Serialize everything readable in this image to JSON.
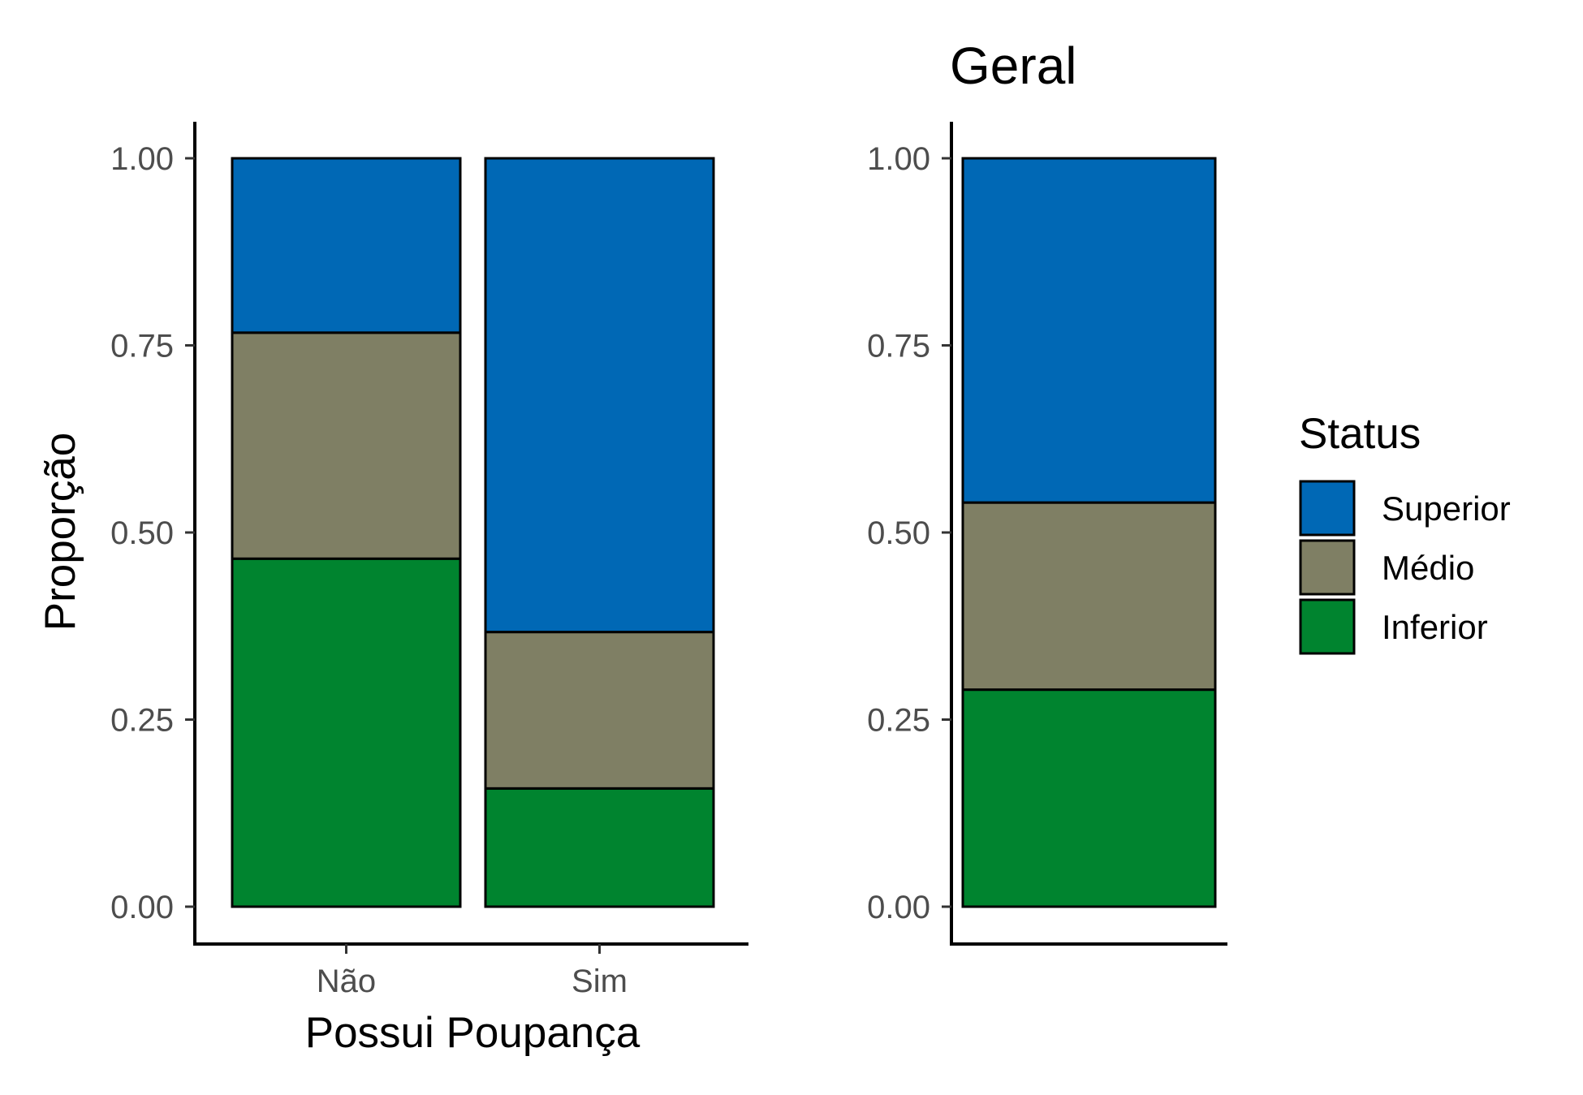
{
  "chart_data": [
    {
      "type": "bar",
      "stacked": true,
      "title": "",
      "xlabel": "Possui Poupança",
      "ylabel": "Proporção",
      "categories": [
        "Não",
        "Sim"
      ],
      "ylim": [
        0,
        1
      ],
      "yticks": [
        "0.00",
        "0.25",
        "0.50",
        "0.75",
        "1.00"
      ],
      "series": [
        {
          "name": "Inferior",
          "color": "#00842F",
          "values": [
            0.465,
            0.158
          ]
        },
        {
          "name": "Médio",
          "color": "#7F7F64",
          "values": [
            0.302,
            0.209
          ]
        },
        {
          "name": "Superior",
          "color": "#0068B5",
          "values": [
            0.233,
            0.633
          ]
        }
      ],
      "grid": false
    },
    {
      "type": "bar",
      "stacked": true,
      "title": "Geral",
      "xlabel": "",
      "ylabel": "",
      "categories": [
        ""
      ],
      "ylim": [
        0,
        1
      ],
      "yticks": [
        "0.00",
        "0.25",
        "0.50",
        "0.75",
        "1.00"
      ],
      "series": [
        {
          "name": "Inferior",
          "color": "#00842F",
          "values": [
            0.29
          ]
        },
        {
          "name": "Médio",
          "color": "#7F7F64",
          "values": [
            0.25
          ]
        },
        {
          "name": "Superior",
          "color": "#0068B5",
          "values": [
            0.46
          ]
        }
      ],
      "grid": false
    }
  ],
  "legend": {
    "title": "Status",
    "placement": "right",
    "items": [
      {
        "label": "Superior",
        "color": "#0068B5"
      },
      {
        "label": "Médio",
        "color": "#7F7F64"
      },
      {
        "label": "Inferior",
        "color": "#00842F"
      }
    ]
  }
}
